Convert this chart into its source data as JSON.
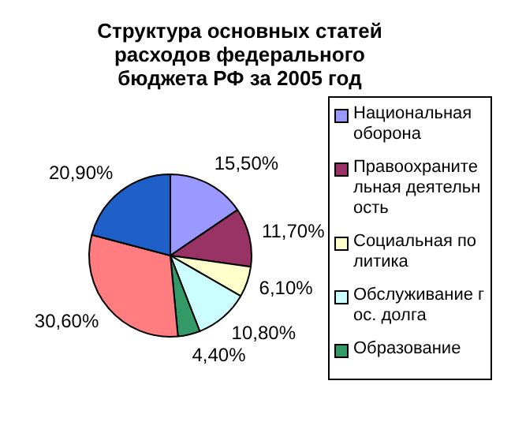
{
  "chart_data": {
    "type": "pie",
    "title": "Структура основных статей расходов федерального бюджета РФ за 2005 год",
    "categories": [
      "Национальная оборона",
      "Правоохранительная деятельность",
      "Социальная политика",
      "Обслуживание гос. долга",
      "Образование",
      null,
      null
    ],
    "values": [
      15.5,
      11.7,
      6.1,
      10.8,
      4.4,
      30.6,
      20.9
    ],
    "value_labels": [
      "15,50%",
      "11,70%",
      "6,10%",
      "10,80%",
      "4,40%",
      "30,60%",
      "20,90%"
    ],
    "colors": [
      "#9999ff",
      "#993366",
      "#ffffcc",
      "#ccffff",
      "#339966",
      "#ff7c80",
      "#1f5fc8"
    ],
    "legend": "right"
  }
}
